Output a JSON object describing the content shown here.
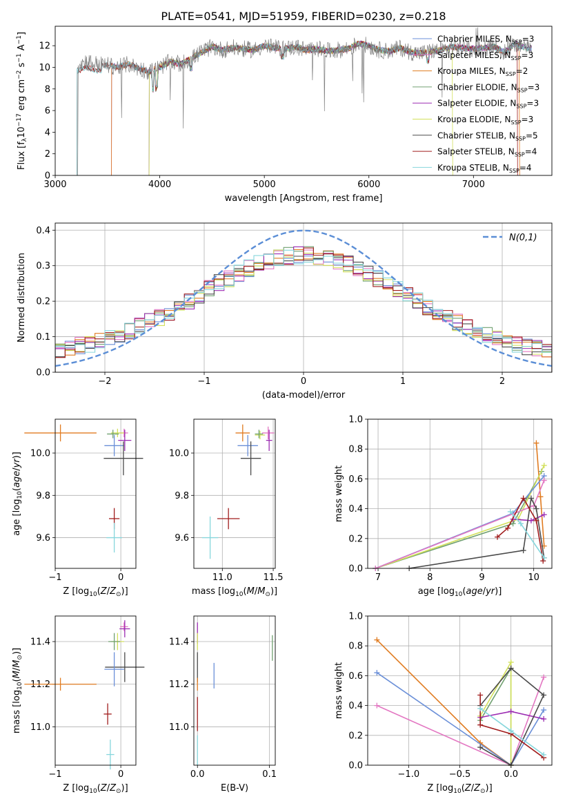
{
  "figure_title": "PLATE=0541, MJD=51959, FIBERID=0230, z=0.218",
  "colors": {
    "Chabrier MILES": "#6a8fd8",
    "Salpeter MILES": "#e377c2",
    "Kroupa MILES": "#e07b20",
    "Chabrier ELODIE": "#70a070",
    "Salpeter ELODIE": "#9b2bb2",
    "Kroupa ELODIE": "#d2e05a",
    "Chabrier STELIB": "#4a4a4a",
    "Salpeter STELIB": "#a01c1c",
    "Kroupa STELIB": "#86d6dc",
    "gauss": "#5b8ed6",
    "grid": "#b0b0b0"
  },
  "chart_data": [
    {
      "id": "spectrum",
      "type": "line",
      "title": "PLATE=0541, MJD=51959, FIBERID=0230, z=0.218",
      "xlabel": "wavelength [Angstrom, rest frame]",
      "ylabel": "Flux [f_λ 10^-17 erg cm^-2 s^-1 A^-1]",
      "xlim": [
        3000,
        7750
      ],
      "ylim": [
        0,
        13.8
      ],
      "xticks": [
        3000,
        4000,
        5000,
        6000,
        7000
      ],
      "yticks": [
        0,
        2,
        4,
        6,
        8,
        10,
        12
      ],
      "legend_placement": "right",
      "legend": [
        {
          "model": "Chabrier MILES",
          "label": "Chabrier MILES, N",
          "sub": "SSP",
          "tail": "=3"
        },
        {
          "model": "Salpeter MILES",
          "label": "Salpeter MILES, N",
          "sub": "SSP",
          "tail": "=3"
        },
        {
          "model": "Kroupa MILES",
          "label": "Kroupa MILES, N",
          "sub": "SSP",
          "tail": "=2"
        },
        {
          "model": "Chabrier ELODIE",
          "label": "Chabrier ELODIE, N",
          "sub": "SSP",
          "tail": "=3"
        },
        {
          "model": "Salpeter ELODIE",
          "label": "Salpeter ELODIE, N",
          "sub": "SSP",
          "tail": "=3"
        },
        {
          "model": "Kroupa ELODIE",
          "label": "Kroupa ELODIE, N",
          "sub": "SSP",
          "tail": "=3"
        },
        {
          "model": "Chabrier STELIB",
          "label": "Chabrier STELIB, N",
          "sub": "SSP",
          "tail": "=5"
        },
        {
          "model": "Salpeter STELIB",
          "label": "Salpeter STELIB, N",
          "sub": "SSP",
          "tail": "=4"
        },
        {
          "model": "Kroupa STELIB",
          "label": "Kroupa STELIB, N",
          "sub": "SSP",
          "tail": "=4"
        }
      ],
      "continuum": {
        "x": [
          3200,
          3300,
          3400,
          3500,
          3600,
          3700,
          3800,
          3900,
          4000,
          4100,
          4200,
          4300,
          4400,
          4500,
          4600,
          4700,
          4800,
          4900,
          5000,
          5100,
          5200,
          5300,
          5400,
          5500,
          5600,
          5700,
          5800,
          5900,
          6000,
          6100,
          6200,
          6300,
          6400,
          6500,
          6600,
          6700,
          6800,
          6900,
          7000,
          7100,
          7200,
          7300,
          7400,
          7500
        ],
        "y": [
          10.2,
          10.6,
          10.3,
          10.2,
          10.0,
          10.3,
          9.9,
          9.6,
          10.0,
          10.5,
          10.3,
          10.8,
          11.4,
          11.9,
          11.6,
          11.8,
          11.7,
          11.6,
          12.0,
          11.8,
          11.7,
          11.9,
          11.6,
          11.7,
          11.5,
          11.6,
          11.7,
          12.2,
          12.0,
          11.6,
          11.5,
          11.8,
          11.4,
          11.3,
          11.5,
          11.6,
          11.9,
          11.8,
          11.7,
          11.8,
          11.9,
          11.4,
          12.2,
          11.8
        ]
      },
      "model_cutoffs": {
        "Chabrier MILES": 3540,
        "Salpeter MILES": 3540,
        "Kroupa MILES": 3540,
        "Chabrier ELODIE": 3900,
        "Salpeter ELODIE": 3900,
        "Kroupa ELODIE": 3900,
        "Chabrier STELIB": 3210,
        "Salpeter STELIB": 3210,
        "Kroupa STELIB": 3210
      },
      "model_red_cutoffs": {
        "Kroupa ELODIE": 6800,
        "Salpeter STELIB": 7420,
        "Kroupa MILES": 7440
      }
    },
    {
      "id": "residuals",
      "type": "line",
      "xlabel": "(data-model)/error",
      "ylabel": "Normed distribution",
      "xlim": [
        -2.5,
        2.5
      ],
      "ylim": [
        0,
        0.42
      ],
      "xticks": [
        -2,
        -1,
        0,
        1,
        2
      ],
      "yticks": [
        0.0,
        0.1,
        0.2,
        0.3,
        0.4
      ],
      "legend_placement": "top-right",
      "gauss_label": "N(0,1)",
      "bin_width": 0.1
    },
    {
      "id": "age_vs_Z",
      "type": "scatter",
      "xlabel": "Z [log10(Z/Z⊙)]",
      "ylabel": "age  [log10(age/yr)]",
      "xlim": [
        -1.0,
        0.23
      ],
      "ylim": [
        9.455,
        10.16
      ],
      "xticks": [
        -1,
        0
      ],
      "yticks": [
        9.6,
        9.8,
        10.0
      ],
      "points": [
        {
          "model": "Kroupa MILES",
          "x": -0.92,
          "y": 10.095,
          "xerr": 0.55,
          "yerr": 0.04
        },
        {
          "model": "Salpeter MILES",
          "x": 0.05,
          "y": 10.095,
          "xerr": 0.06,
          "yerr": 0.02
        },
        {
          "model": "Kroupa ELODIE",
          "x": -0.05,
          "y": 10.095,
          "xerr": 0.1,
          "yerr": 0.02
        },
        {
          "model": "Chabrier ELODIE",
          "x": -0.12,
          "y": 10.09,
          "xerr": 0.09,
          "yerr": 0.02
        },
        {
          "model": "Salpeter ELODIE",
          "x": 0.06,
          "y": 10.06,
          "xerr": 0.1,
          "yerr": 0.05
        },
        {
          "model": "Chabrier MILES",
          "x": -0.1,
          "y": 10.035,
          "xerr": 0.15,
          "yerr": 0.05
        },
        {
          "model": "Chabrier STELIB",
          "x": 0.04,
          "y": 9.975,
          "xerr": 0.3,
          "yerr": 0.08
        },
        {
          "model": "Salpeter STELIB",
          "x": -0.1,
          "y": 9.69,
          "xerr": 0.08,
          "yerr": 0.05
        },
        {
          "model": "Kroupa STELIB",
          "x": -0.1,
          "y": 9.6,
          "xerr": 0.12,
          "yerr": 0.07
        }
      ]
    },
    {
      "id": "age_vs_mass",
      "type": "scatter",
      "xlabel": "mass [log10(M/M⊙)]",
      "ylabel": "",
      "xlim": [
        10.72,
        11.52
      ],
      "ylim": [
        9.455,
        10.16
      ],
      "xticks": [
        11.0,
        11.5
      ],
      "yticks": [
        9.6,
        9.8,
        10.0
      ],
      "points": [
        {
          "model": "Kroupa MILES",
          "x": 11.2,
          "y": 10.095,
          "xerr": 0.07,
          "yerr": 0.04
        },
        {
          "model": "Salpeter MILES",
          "x": 11.45,
          "y": 10.095,
          "xerr": 0.06,
          "yerr": 0.03
        },
        {
          "model": "Kroupa ELODIE",
          "x": 11.37,
          "y": 10.085,
          "xerr": 0.05,
          "yerr": 0.02
        },
        {
          "model": "Chabrier ELODIE",
          "x": 11.36,
          "y": 10.09,
          "xerr": 0.04,
          "yerr": 0.02
        },
        {
          "model": "Salpeter ELODIE",
          "x": 11.46,
          "y": 10.06,
          "xerr": 0.03,
          "yerr": 0.05
        },
        {
          "model": "Chabrier MILES",
          "x": 11.25,
          "y": 10.035,
          "xerr": 0.1,
          "yerr": 0.05
        },
        {
          "model": "Chabrier STELIB",
          "x": 11.28,
          "y": 9.975,
          "xerr": 0.1,
          "yerr": 0.08
        },
        {
          "model": "Salpeter STELIB",
          "x": 11.06,
          "y": 9.69,
          "xerr": 0.11,
          "yerr": 0.05
        },
        {
          "model": "Kroupa STELIB",
          "x": 10.88,
          "y": 9.6,
          "xerr": 0.08,
          "yerr": 0.1
        }
      ]
    },
    {
      "id": "weight_vs_age",
      "type": "line",
      "xlabel": "age  [log10(age/yr)]",
      "ylabel": "mass weight",
      "xlim": [
        6.8,
        10.35
      ],
      "ylim": [
        0,
        1.0
      ],
      "xticks": [
        7,
        8,
        9,
        10
      ],
      "yticks": [
        0.0,
        0.2,
        0.4,
        0.6,
        0.8,
        1.0
      ],
      "series": [
        {
          "model": "Kroupa MILES",
          "x": [
            10.05,
            10.13,
            10.2
          ],
          "y": [
            0.84,
            0.48,
            0.15
          ]
        },
        {
          "model": "Chabrier ELODIE",
          "x": [
            6.95,
            9.6,
            10.15
          ],
          "y": [
            0.0,
            0.3,
            0.65
          ]
        },
        {
          "model": "Kroupa ELODIE",
          "x": [
            6.95,
            9.7,
            10.2
          ],
          "y": [
            0.0,
            0.33,
            0.69
          ]
        },
        {
          "model": "Salpeter ELODIE",
          "x": [
            9.6,
            9.95,
            10.2
          ],
          "y": [
            0.33,
            0.32,
            0.36
          ]
        },
        {
          "model": "Chabrier MILES",
          "x": [
            6.95,
            9.6,
            10.2
          ],
          "y": [
            0.0,
            0.37,
            0.62
          ]
        },
        {
          "model": "Salpeter MILES",
          "x": [
            6.95,
            10.0,
            10.2
          ],
          "y": [
            0.0,
            0.42,
            0.59
          ]
        },
        {
          "model": "Chabrier STELIB",
          "x": [
            7.6,
            9.8,
            9.95,
            10.05,
            10.2
          ],
          "y": [
            0.0,
            0.12,
            0.47,
            0.4,
            0.07
          ]
        },
        {
          "model": "Salpeter STELIB",
          "x": [
            9.3,
            9.5,
            9.8,
            10.05,
            10.18
          ],
          "y": [
            0.21,
            0.27,
            0.47,
            0.32,
            0.05
          ]
        },
        {
          "model": "Kroupa STELIB",
          "x": [
            9.55,
            9.75,
            10.2
          ],
          "y": [
            0.38,
            0.3,
            0.07
          ]
        }
      ]
    },
    {
      "id": "mass_vs_Z",
      "type": "scatter",
      "xlabel": "Z [log10(Z/Z⊙)]",
      "ylabel": "mass [log10(M/M⊙)]",
      "xlim": [
        -1.0,
        0.23
      ],
      "ylim": [
        10.82,
        11.52
      ],
      "xticks": [
        -1,
        0
      ],
      "yticks": [
        11.0,
        11.2,
        11.4
      ],
      "points": [
        {
          "model": "Kroupa MILES",
          "x": -0.92,
          "y": 11.2,
          "xerr": 0.55,
          "yerr": 0.03
        },
        {
          "model": "Salpeter MILES",
          "x": 0.05,
          "y": 11.47,
          "xerr": 0.06,
          "yerr": 0.02
        },
        {
          "model": "Salpeter ELODIE",
          "x": 0.06,
          "y": 11.46,
          "xerr": 0.08,
          "yerr": 0.04
        },
        {
          "model": "Kroupa ELODIE",
          "x": -0.05,
          "y": 11.4,
          "xerr": 0.1,
          "yerr": 0.04
        },
        {
          "model": "Chabrier ELODIE",
          "x": -0.1,
          "y": 11.4,
          "xerr": 0.09,
          "yerr": 0.04
        },
        {
          "model": "Chabrier STELIB",
          "x": 0.06,
          "y": 11.28,
          "xerr": 0.3,
          "yerr": 0.07
        },
        {
          "model": "Chabrier MILES",
          "x": -0.1,
          "y": 11.27,
          "xerr": 0.15,
          "yerr": 0.08
        },
        {
          "model": "Salpeter STELIB",
          "x": -0.2,
          "y": 11.06,
          "xerr": 0.06,
          "yerr": 0.05
        },
        {
          "model": "Kroupa STELIB",
          "x": -0.16,
          "y": 10.87,
          "xerr": 0.06,
          "yerr": 0.07
        }
      ]
    },
    {
      "id": "mass_vs_ebv",
      "type": "scatter",
      "xlabel": "E(B-V)",
      "ylabel": "",
      "xlim": [
        -0.005,
        0.108
      ],
      "ylim": [
        10.82,
        11.52
      ],
      "xticks": [
        0.0,
        0.1
      ],
      "yticks": [
        11.0,
        11.2,
        11.4
      ],
      "points": [
        {
          "model": "Salpeter ELODIE",
          "x": 0.0,
          "y": 11.44,
          "xerr": 0.0,
          "yerr": 0.05
        },
        {
          "model": "Kroupa ELODIE",
          "x": 0.0,
          "y": 11.4,
          "xerr": 0.0,
          "yerr": 0.04
        },
        {
          "model": "Chabrier STELIB",
          "x": 0.0,
          "y": 11.28,
          "xerr": 0.0,
          "yerr": 0.07
        },
        {
          "model": "Kroupa MILES",
          "x": 0.0,
          "y": 11.2,
          "xerr": 0.0,
          "yerr": 0.03
        },
        {
          "model": "Salpeter STELIB",
          "x": 0.0,
          "y": 11.06,
          "xerr": 0.0,
          "yerr": 0.08
        },
        {
          "model": "Kroupa STELIB",
          "x": 0.0,
          "y": 10.89,
          "xerr": 0.0,
          "yerr": 0.07
        },
        {
          "model": "Chabrier MILES",
          "x": 0.023,
          "y": 11.24,
          "xerr": 0.0,
          "yerr": 0.06
        },
        {
          "model": "Chabrier ELODIE",
          "x": 0.104,
          "y": 11.37,
          "xerr": 0.0,
          "yerr": 0.06
        }
      ]
    },
    {
      "id": "weight_vs_Z",
      "type": "line",
      "xlabel": "Z [log10(Z/Z⊙)]",
      "ylabel": "mass weight",
      "xlim": [
        -1.4,
        0.4
      ],
      "ylim": [
        0,
        1.0
      ],
      "xticks": [
        -1.0,
        -0.5,
        0.0
      ],
      "yticks": [
        0.0,
        0.2,
        0.4,
        0.6,
        0.8,
        1.0
      ],
      "series": [
        {
          "model": "Kroupa MILES",
          "x": [
            -1.31,
            -0.3,
            0.0
          ],
          "y": [
            0.84,
            0.15,
            0.0
          ]
        },
        {
          "model": "Chabrier MILES",
          "x": [
            -1.31,
            0.0,
            0.32
          ],
          "y": [
            0.62,
            0.0,
            0.37
          ]
        },
        {
          "model": "Salpeter MILES",
          "x": [
            -1.31,
            0.0,
            0.32
          ],
          "y": [
            0.4,
            0.0,
            0.59
          ]
        },
        {
          "model": "Chabrier ELODIE",
          "x": [
            -0.3,
            0.0,
            0.0
          ],
          "y": [
            0.3,
            0.65,
            0.0
          ]
        },
        {
          "model": "Kroupa ELODIE",
          "x": [
            -0.3,
            0.0,
            0.0
          ],
          "y": [
            0.33,
            0.69,
            0.0
          ]
        },
        {
          "model": "Salpeter ELODIE",
          "x": [
            -0.3,
            0.0,
            0.32
          ],
          "y": [
            0.32,
            0.36,
            0.31
          ]
        },
        {
          "model": "Chabrier STELIB",
          "x": [
            -0.3,
            0.0,
            0.32,
            0.0,
            -0.3
          ],
          "y": [
            0.12,
            0.0,
            0.47,
            0.65,
            0.4
          ]
        },
        {
          "model": "Salpeter STELIB",
          "x": [
            -0.3,
            -0.3,
            0.0,
            0.32
          ],
          "y": [
            0.47,
            0.27,
            0.21,
            0.05
          ]
        },
        {
          "model": "Kroupa STELIB",
          "x": [
            -0.3,
            0.0,
            0.32
          ],
          "y": [
            0.38,
            0.23,
            0.07
          ]
        }
      ]
    }
  ]
}
